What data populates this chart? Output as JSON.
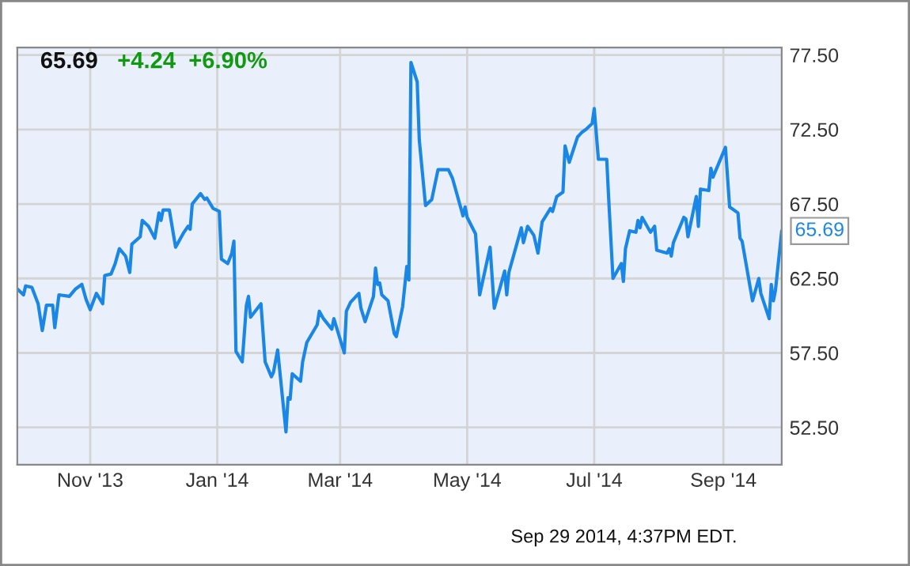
{
  "chart_data": {
    "type": "line",
    "title": "65.69",
    "subtitle": "+4.24  +6.90%",
    "x": [
      "2013-09-27",
      "2013-09-30",
      "2013-10-01",
      "2013-10-04",
      "2013-10-07",
      "2013-10-09",
      "2013-10-11",
      "2013-10-14",
      "2013-10-15",
      "2013-10-17",
      "2013-10-22",
      "2013-10-25",
      "2013-10-28",
      "2013-10-30",
      "2013-11-01",
      "2013-11-04",
      "2013-11-07",
      "2013-11-08",
      "2013-11-11",
      "2013-11-13",
      "2013-11-15",
      "2013-11-18",
      "2013-11-20",
      "2013-11-21",
      "2013-11-25",
      "2013-11-26",
      "2013-11-29",
      "2013-12-02",
      "2013-12-04",
      "2013-12-05",
      "2013-12-06",
      "2013-12-09",
      "2013-12-12",
      "2013-12-16",
      "2013-12-18",
      "2013-12-19",
      "2013-12-20",
      "2013-12-24",
      "2013-12-26",
      "2013-12-27",
      "2013-12-30",
      "2014-01-02",
      "2014-01-03",
      "2014-01-06",
      "2014-01-08",
      "2014-01-09",
      "2014-01-10",
      "2014-01-13",
      "2014-01-15",
      "2014-01-16",
      "2014-01-17",
      "2014-01-22",
      "2014-01-24",
      "2014-01-27",
      "2014-01-28",
      "2014-01-30",
      "2014-02-03",
      "2014-02-04",
      "2014-02-05",
      "2014-02-06",
      "2014-02-10",
      "2014-02-11",
      "2014-02-13",
      "2014-02-18",
      "2014-02-19",
      "2014-02-21",
      "2014-02-25",
      "2014-02-26",
      "2014-03-03",
      "2014-03-04",
      "2014-03-06",
      "2014-03-10",
      "2014-03-11",
      "2014-03-13",
      "2014-03-17",
      "2014-03-18",
      "2014-03-19",
      "2014-03-20",
      "2014-03-21",
      "2014-03-24",
      "2014-03-27",
      "2014-03-28",
      "2014-03-31",
      "2014-04-02",
      "2014-04-03",
      "2014-04-04",
      "2014-04-07",
      "2014-04-08",
      "2014-04-11",
      "2014-04-14",
      "2014-04-17",
      "2014-04-22",
      "2014-04-24",
      "2014-04-29",
      "2014-04-30",
      "2014-05-01",
      "2014-05-05",
      "2014-05-07",
      "2014-05-12",
      "2014-05-14",
      "2014-05-19",
      "2014-05-20",
      "2014-05-21",
      "2014-05-27",
      "2014-05-28",
      "2014-05-30",
      "2014-06-02",
      "2014-06-04",
      "2014-06-06",
      "2014-06-10",
      "2014-06-11",
      "2014-06-13",
      "2014-06-16",
      "2014-06-17",
      "2014-06-19",
      "2014-06-23",
      "2014-06-25",
      "2014-06-27",
      "2014-06-30",
      "2014-07-01",
      "2014-07-03",
      "2014-07-07",
      "2014-07-08",
      "2014-07-10",
      "2014-07-14",
      "2014-07-15",
      "2014-07-16",
      "2014-07-18",
      "2014-07-21",
      "2014-07-22",
      "2014-07-23",
      "2014-07-24",
      "2014-07-28",
      "2014-07-30",
      "2014-07-31",
      "2014-08-05",
      "2014-08-06",
      "2014-08-07",
      "2014-08-08",
      "2014-08-13",
      "2014-08-14",
      "2014-08-15",
      "2014-08-19",
      "2014-08-20",
      "2014-08-21",
      "2014-08-25",
      "2014-08-26",
      "2014-08-27",
      "2014-09-02",
      "2014-09-04",
      "2014-09-08",
      "2014-09-09",
      "2014-09-10",
      "2014-09-15",
      "2014-09-18",
      "2014-09-19",
      "2014-09-23",
      "2014-09-24",
      "2014-09-25",
      "2014-09-26",
      "2014-09-29"
    ],
    "series": [
      {
        "color": "#1a87e6",
        "values": [
          61.8,
          61.4,
          62.0,
          61.9,
          60.8,
          59.0,
          60.7,
          60.7,
          59.2,
          61.4,
          61.3,
          61.8,
          62.1,
          61.1,
          60.4,
          61.5,
          60.8,
          62.7,
          62.8,
          63.5,
          64.5,
          64.0,
          62.9,
          64.8,
          65.3,
          66.4,
          66.0,
          65.2,
          66.9,
          66.4,
          67.1,
          67.1,
          64.6,
          65.6,
          66.0,
          65.8,
          67.5,
          68.2,
          67.8,
          67.9,
          67.2,
          67.0,
          63.8,
          63.5,
          64.2,
          65.0,
          57.6,
          56.9,
          60.7,
          61.3,
          59.9,
          60.8,
          56.9,
          55.9,
          56.2,
          57.7,
          52.2,
          54.5,
          54.4,
          56.1,
          55.6,
          56.9,
          58.2,
          59.4,
          60.3,
          59.8,
          59.1,
          59.8,
          57.5,
          60.3,
          60.9,
          61.5,
          60.5,
          59.6,
          61.3,
          63.2,
          62.1,
          62.2,
          61.4,
          61.0,
          58.8,
          58.6,
          60.6,
          63.3,
          62.4,
          77.0,
          75.7,
          71.8,
          67.4,
          67.8,
          69.8,
          69.8,
          69.2,
          66.7,
          67.3,
          66.6,
          65.5,
          61.4,
          64.6,
          60.5,
          63.0,
          61.4,
          62.9,
          65.9,
          64.9,
          66.0,
          65.4,
          64.2,
          66.3,
          67.2,
          67.0,
          68.0,
          68.3,
          71.4,
          70.3,
          72.0,
          72.3,
          72.5,
          72.9,
          73.9,
          70.5,
          70.5,
          67.7,
          62.5,
          63.5,
          62.3,
          64.5,
          65.7,
          65.6,
          66.4,
          65.9,
          66.6,
          65.6,
          66.0,
          64.4,
          64.2,
          64.5,
          64.0,
          64.9,
          66.6,
          66.5,
          65.3,
          68.0,
          66.0,
          68.5,
          68.4,
          69.9,
          69.3,
          71.3,
          67.3,
          66.9,
          65.2,
          65.0,
          61.0,
          62.5,
          61.5,
          59.8,
          62.1,
          61.0,
          61.7,
          65.69
        ]
      }
    ],
    "xlim": [
      "2013-09-27",
      "2014-09-29"
    ],
    "xticks": [
      {
        "value": "2013-11-01",
        "label": "Nov '13"
      },
      {
        "value": "2014-01-01",
        "label": "Jan '14"
      },
      {
        "value": "2014-03-01",
        "label": "Mar '14"
      },
      {
        "value": "2014-05-01",
        "label": "May '14"
      },
      {
        "value": "2014-07-01",
        "label": "Jul '14"
      },
      {
        "value": "2014-09-01",
        "label": "Sep '14"
      }
    ],
    "ylim": [
      50,
      78
    ],
    "yticks": [
      {
        "value": 52.5,
        "label": "52.50"
      },
      {
        "value": 57.5,
        "label": "57.50"
      },
      {
        "value": 62.5,
        "label": "62.50"
      },
      {
        "value": 67.5,
        "label": "67.50"
      },
      {
        "value": 72.5,
        "label": "72.50"
      },
      {
        "value": 77.5,
        "label": "77.50"
      }
    ],
    "grid": true,
    "legend": false,
    "annotations": [
      {
        "text": "65.69",
        "x": "2014-09-29",
        "y": 65.69
      },
      "Sep 29 2014, 4:37PM EDT."
    ]
  }
}
